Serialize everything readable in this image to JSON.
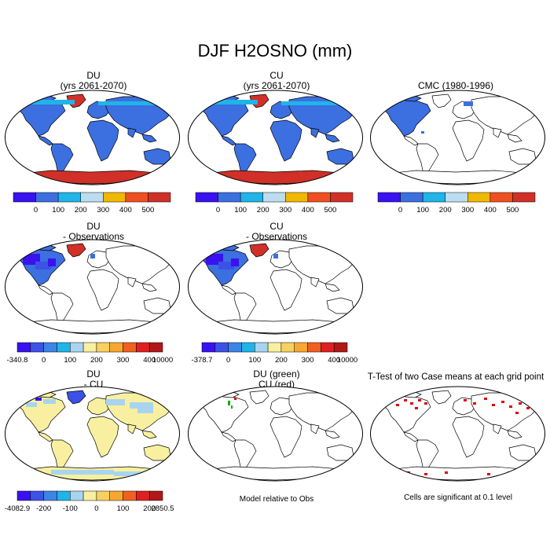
{
  "figure": {
    "title": "DJF H2OSNO (mm)"
  },
  "panels": {
    "du": {
      "line1": "DU",
      "line2": "(yrs 2061-2070)"
    },
    "cu": {
      "line1": "CU",
      "line2": "(yrs 2061-2070)"
    },
    "cmc": {
      "line1": "CMC (1980-1996)"
    },
    "du_obs": {
      "line1": "DU",
      "line2": "- Observations"
    },
    "cu_obs": {
      "line1": "CU",
      "line2": "- Observations"
    },
    "du_cu": {
      "line1": "DU",
      "line2": "- CU"
    },
    "green_red": {
      "line1": "DU (green)",
      "line2": "CU (red)"
    },
    "ttest": {
      "line1": "T-Test of two Case means at each grid point"
    }
  },
  "notes": {
    "model_relative": "Model relative to Obs",
    "significance": "Cells are significant at 0.1 level"
  },
  "colorbars": {
    "abs": {
      "labels": [
        "0",
        "100",
        "200",
        "300",
        "400",
        "500"
      ],
      "colors": [
        "#3a12f0",
        "#3c6fe0",
        "#20b4e8",
        "#bcdcf0",
        "#f0b800",
        "#f05020",
        "#d03028"
      ]
    },
    "du_obs": {
      "labels": [
        "-340.8",
        "0",
        "100",
        "200",
        "300",
        "400",
        "10000"
      ],
      "colors": [
        "#3a12f0",
        "#3c52e6",
        "#3c84e6",
        "#20b4e8",
        "#a8d4f0",
        "#f8f0a0",
        "#f8d060",
        "#f8a830",
        "#f06020",
        "#e02020",
        "#b01818"
      ]
    },
    "cu_obs": {
      "labels": [
        "-378.7",
        "0",
        "100",
        "200",
        "300",
        "400",
        "10000"
      ],
      "colors": [
        "#3a12f0",
        "#3c52e6",
        "#3c84e6",
        "#20b4e8",
        "#a8d4f0",
        "#f8f0a0",
        "#f8d060",
        "#f8a830",
        "#f06020",
        "#e02020",
        "#b01818"
      ]
    },
    "du_cu": {
      "labels": [
        "-4082.9",
        "-200",
        "-100",
        "0",
        "100",
        "200",
        "2850.5"
      ],
      "colors": [
        "#3a12f0",
        "#3c52e6",
        "#3c84e6",
        "#20b4e8",
        "#a8d4f0",
        "#f8f0a0",
        "#f8d060",
        "#f8a830",
        "#f06020",
        "#e02020",
        "#b01818"
      ]
    }
  },
  "colors": {
    "land_fill": "#3c6fe0",
    "ant_fill": "#d03028",
    "greenland": "#d03028",
    "diff_fill": "#f8f0a0",
    "diff_mix": "#a8d4f0",
    "sig_red": "#e00000",
    "sig_green": "#00b000"
  }
}
